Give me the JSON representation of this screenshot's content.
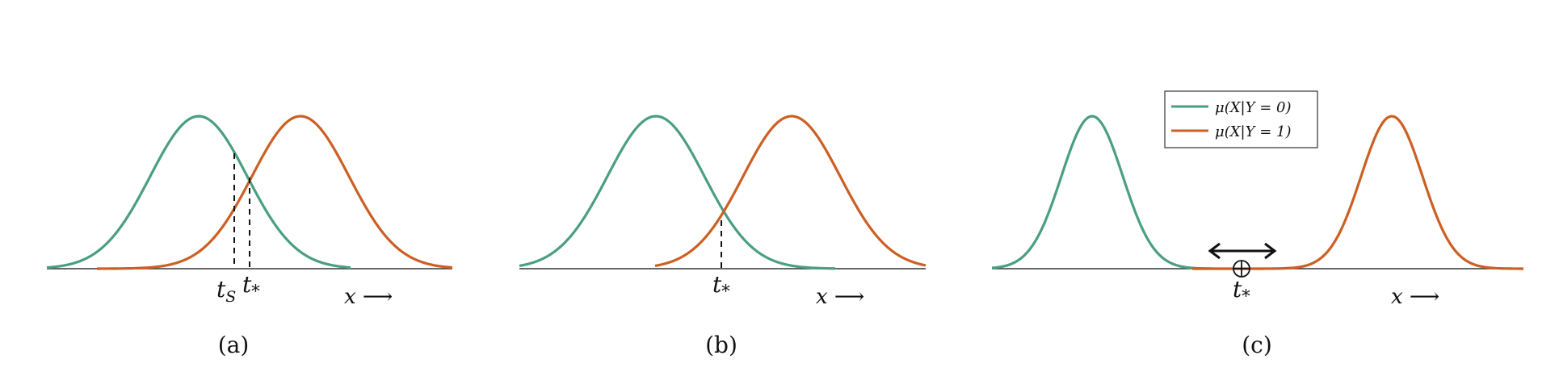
{
  "colors": {
    "class0": "#4a9e82",
    "class1": "#cc5f23",
    "axis": "#333333"
  },
  "legend": {
    "class0_label": "μ(X|Y = 0)",
    "class1_label": "μ(X|Y = 1)"
  },
  "panels": [
    {
      "caption": "(a)",
      "x_label": "x ⟶",
      "thresholds": [
        {
          "label_main": "t",
          "label_sub": "S"
        },
        {
          "label_main": "t",
          "label_sub": "*"
        }
      ]
    },
    {
      "caption": "(b)",
      "x_label": "x ⟶",
      "thresholds": [
        {
          "label_main": "t",
          "label_sub": "*"
        }
      ]
    },
    {
      "caption": "(c)",
      "x_label": "x ⟶",
      "thresholds": [
        {
          "label_main": "t",
          "label_sub": "*"
        }
      ]
    }
  ]
}
